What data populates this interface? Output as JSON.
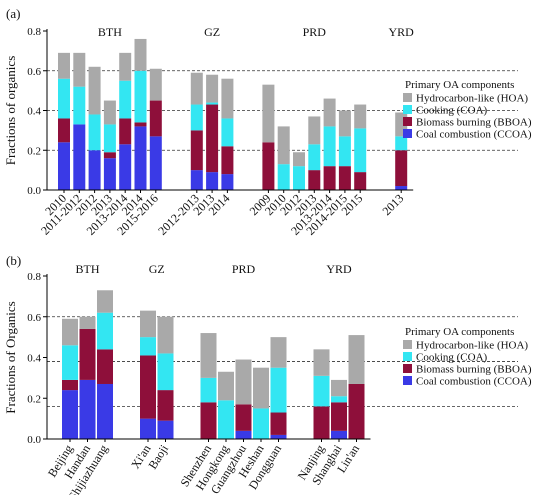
{
  "colors": {
    "HOA": "#a9a9a9",
    "COA": "#33e6f2",
    "BBOA": "#8e0f3a",
    "CCOA": "#3a3ae6"
  },
  "chart_data": [
    {
      "type": "bar",
      "stacked": true,
      "panel_label": "(a)",
      "ylabel": "Fractions of organics",
      "ylim": [
        0,
        0.8
      ],
      "yticks": [
        "0.0",
        "0.2",
        "0.4",
        "0.6",
        "0.8"
      ],
      "reference_lines": [
        0.2,
        0.4,
        0.6
      ],
      "legend_title": "Primary OA components",
      "legend_position": "right",
      "legend": [
        {
          "key": "HOA",
          "label": "Hydrocarbon-like (HOA)"
        },
        {
          "key": "COA",
          "label": "Cooking (COA)"
        },
        {
          "key": "BBOA",
          "label": "Biomass burning (BBOA)"
        },
        {
          "key": "CCOA",
          "label": "Coal combustion (CCOA)"
        }
      ],
      "groups": [
        {
          "name": "BTH",
          "bars": [
            {
              "label": "2010",
              "CCOA": 0.24,
              "BBOA": 0.12,
              "COA": 0.2,
              "HOA": 0.13
            },
            {
              "label": "2011-2012",
              "CCOA": 0.33,
              "BBOA": 0.0,
              "COA": 0.19,
              "HOA": 0.17
            },
            {
              "label": "2012",
              "CCOA": 0.2,
              "BBOA": 0.0,
              "COA": 0.18,
              "HOA": 0.24
            },
            {
              "label": "2013",
              "CCOA": 0.16,
              "BBOA": 0.03,
              "COA": 0.14,
              "HOA": 0.12
            },
            {
              "label": "2013-2014",
              "CCOA": 0.23,
              "BBOA": 0.13,
              "COA": 0.19,
              "HOA": 0.14
            },
            {
              "label": "2014",
              "CCOA": 0.32,
              "BBOA": 0.02,
              "COA": 0.26,
              "HOA": 0.16
            },
            {
              "label": "2015-2016",
              "CCOA": 0.27,
              "BBOA": 0.18,
              "COA": 0.0,
              "HOA": 0.16
            }
          ]
        },
        {
          "name": "GZ",
          "bars": [
            {
              "label": "2012-2013",
              "CCOA": 0.1,
              "BBOA": 0.2,
              "COA": 0.13,
              "HOA": 0.16
            },
            {
              "label": "2013",
              "CCOA": 0.09,
              "BBOA": 0.34,
              "COA": 0.01,
              "HOA": 0.14
            },
            {
              "label": "2014",
              "CCOA": 0.08,
              "BBOA": 0.14,
              "COA": 0.14,
              "HOA": 0.2
            }
          ]
        },
        {
          "name": "PRD",
          "bars": [
            {
              "label": "2009",
              "CCOA": 0.0,
              "BBOA": 0.24,
              "COA": 0.0,
              "HOA": 0.29
            },
            {
              "label": "2010",
              "CCOA": 0.0,
              "BBOA": 0.0,
              "COA": 0.13,
              "HOA": 0.19
            },
            {
              "label": "2012",
              "CCOA": 0.0,
              "BBOA": 0.0,
              "COA": 0.12,
              "HOA": 0.07
            },
            {
              "label": "2013",
              "CCOA": 0.0,
              "BBOA": 0.1,
              "COA": 0.13,
              "HOA": 0.14
            },
            {
              "label": "2013-2014",
              "CCOA": 0.0,
              "BBOA": 0.12,
              "COA": 0.2,
              "HOA": 0.14
            },
            {
              "label": "2014-2015",
              "CCOA": 0.0,
              "BBOA": 0.12,
              "COA": 0.15,
              "HOA": 0.13
            },
            {
              "label": "2015",
              "CCOA": 0.0,
              "BBOA": 0.09,
              "COA": 0.22,
              "HOA": 0.12
            }
          ]
        },
        {
          "name": "YRD",
          "bars": [
            {
              "label": "2013",
              "CCOA": 0.02,
              "BBOA": 0.18,
              "COA": 0.07,
              "HOA": 0.12
            }
          ]
        }
      ]
    },
    {
      "type": "bar",
      "stacked": true,
      "panel_label": "(b)",
      "ylabel": "Fractions of Organics",
      "ylim": [
        0,
        0.8
      ],
      "yticks": [
        "0.0",
        "0.2",
        "0.4",
        "0.6",
        "0.8"
      ],
      "reference_lines": [
        0.16,
        0.38,
        0.6
      ],
      "legend_title": "Primary OA components",
      "legend_position": "right",
      "legend": [
        {
          "key": "HOA",
          "label": "Hydrocarbon-like (HOA)"
        },
        {
          "key": "COA",
          "label": "Cooking (COA)"
        },
        {
          "key": "BBOA",
          "label": "Biomass burning (BBOA)"
        },
        {
          "key": "CCOA",
          "label": "Coal combustion (CCOA)"
        }
      ],
      "groups": [
        {
          "name": "BTH",
          "bars": [
            {
              "label": "Beijing",
              "CCOA": 0.24,
              "BBOA": 0.05,
              "COA": 0.17,
              "HOA": 0.13
            },
            {
              "label": "Handan",
              "CCOA": 0.29,
              "BBOA": 0.25,
              "COA": 0.0,
              "HOA": 0.06
            },
            {
              "label": "Shijiazhuang",
              "CCOA": 0.27,
              "BBOA": 0.17,
              "COA": 0.18,
              "HOA": 0.11
            }
          ]
        },
        {
          "name": "GZ",
          "bars": [
            {
              "label": "Xi'an",
              "CCOA": 0.1,
              "BBOA": 0.31,
              "COA": 0.09,
              "HOA": 0.13
            },
            {
              "label": "Baoji",
              "CCOA": 0.09,
              "BBOA": 0.15,
              "COA": 0.18,
              "HOA": 0.18
            }
          ]
        },
        {
          "name": "PRD",
          "bars": [
            {
              "label": "Shenzhen",
              "CCOA": 0.0,
              "BBOA": 0.18,
              "COA": 0.12,
              "HOA": 0.22
            },
            {
              "label": "Hongkong",
              "CCOA": 0.0,
              "BBOA": 0.0,
              "COA": 0.19,
              "HOA": 0.14
            },
            {
              "label": "Guangzhou",
              "CCOA": 0.04,
              "BBOA": 0.13,
              "COA": 0.0,
              "HOA": 0.22
            },
            {
              "label": "Heshan",
              "CCOA": 0.0,
              "BBOA": 0.0,
              "COA": 0.15,
              "HOA": 0.2
            },
            {
              "label": "Dongguan",
              "CCOA": 0.02,
              "BBOA": 0.11,
              "COA": 0.22,
              "HOA": 0.15
            }
          ]
        },
        {
          "name": "YRD",
          "bars": [
            {
              "label": "Nanjing",
              "CCOA": 0.0,
              "BBOA": 0.16,
              "COA": 0.15,
              "HOA": 0.13
            },
            {
              "label": "Shanghai",
              "CCOA": 0.04,
              "BBOA": 0.14,
              "COA": 0.03,
              "HOA": 0.08
            },
            {
              "label": "Lin'an",
              "CCOA": 0.0,
              "BBOA": 0.27,
              "COA": 0.0,
              "HOA": 0.24
            }
          ]
        }
      ]
    }
  ]
}
